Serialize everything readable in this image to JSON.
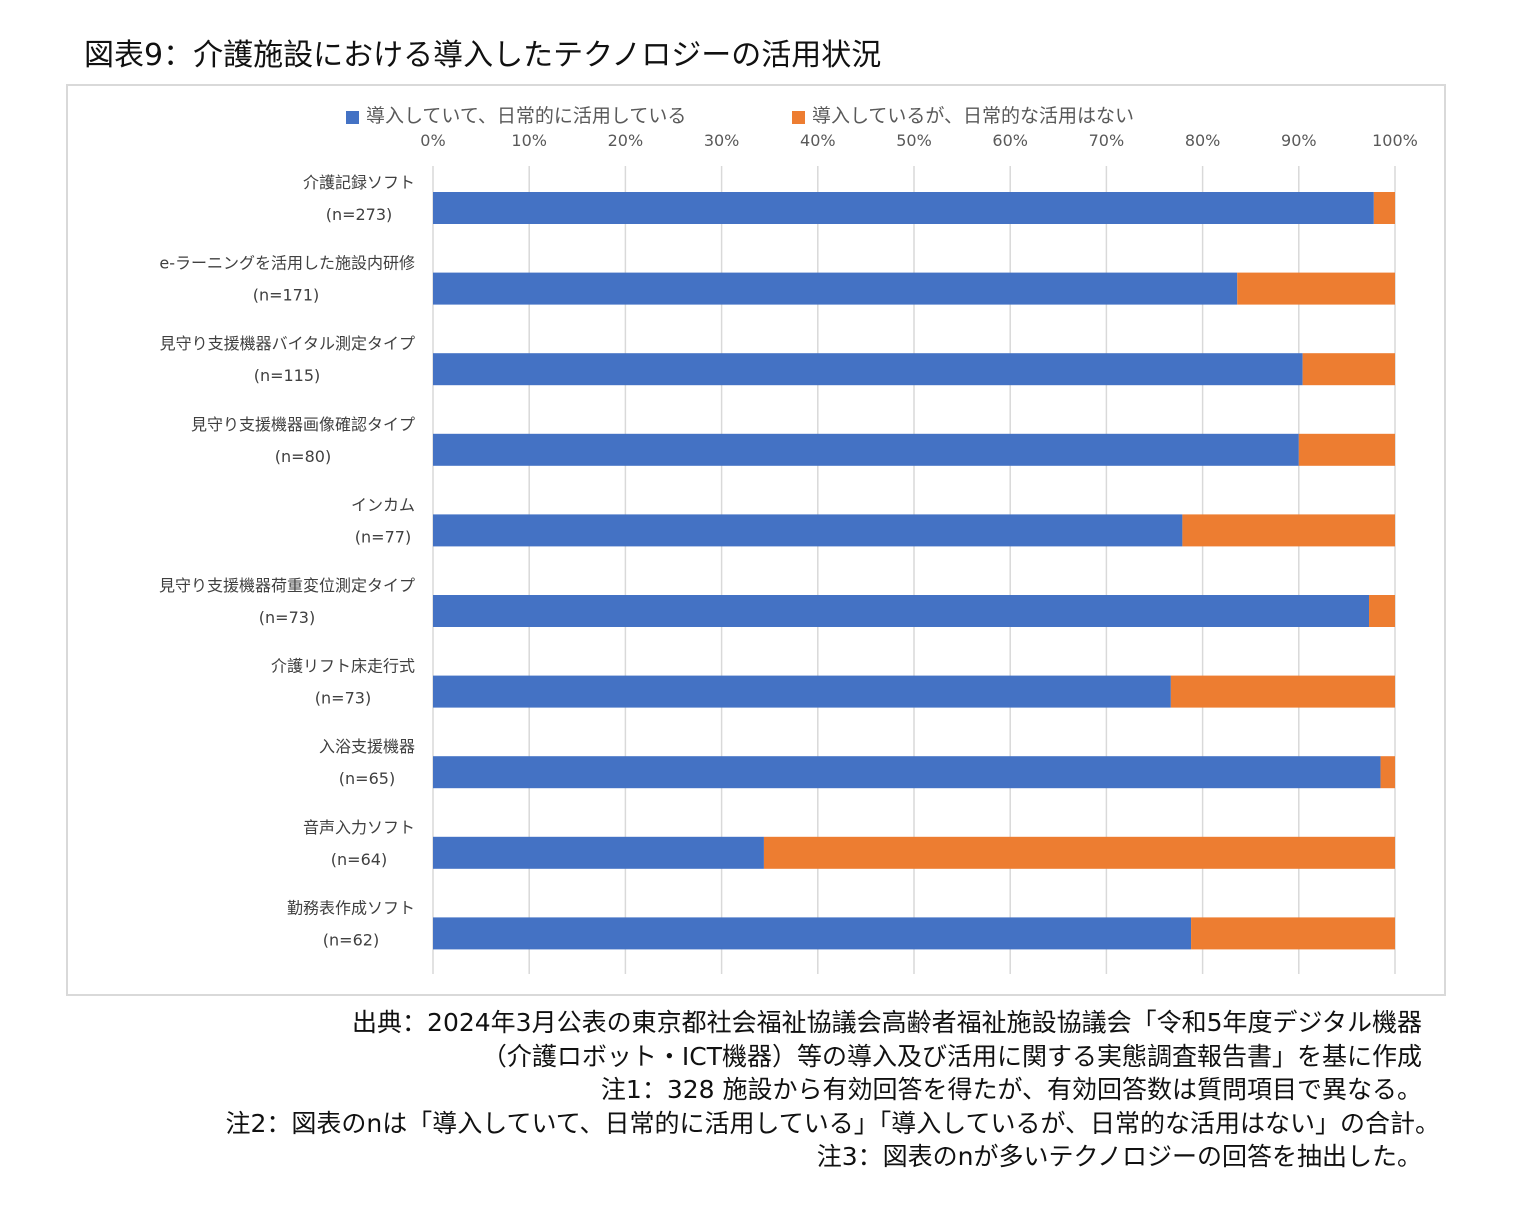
{
  "title": "図表9：介護施設における導入したテクノロジーの活用状況",
  "chart_data": {
    "type": "bar",
    "orientation": "horizontal",
    "stacked": "percent",
    "title": "",
    "legend": [
      "導入していて、日常的に活用している",
      "導入しているが、日常的な活用はない"
    ],
    "legend_position": "top",
    "colors": [
      "#4472c4",
      "#ed7d31"
    ],
    "axis_ticks": [
      "0%",
      "10%",
      "20%",
      "30%",
      "40%",
      "50%",
      "60%",
      "70%",
      "80%",
      "90%",
      "100%"
    ],
    "xlim": [
      0,
      100
    ],
    "grid": true,
    "categories": [
      {
        "name": "介護記録ソフト",
        "n": "(n=273)"
      },
      {
        "name": "e-ラーニングを活用した施設内研修",
        "n": "(n=171)"
      },
      {
        "name": "見守り支援機器バイタル測定タイプ",
        "n": "(n=115)"
      },
      {
        "name": "見守り支援機器画像確認タイプ",
        "n": "(n=80)"
      },
      {
        "name": "インカム",
        "n": "(n=77)"
      },
      {
        "name": "見守り支援機器荷重変位測定タイプ",
        "n": "(n=73)"
      },
      {
        "name": "介護リフト床走行式",
        "n": "(n=73)"
      },
      {
        "name": "入浴支援機器",
        "n": "(n=65)"
      },
      {
        "name": "音声入力ソフト",
        "n": "(n=64)"
      },
      {
        "name": "勤務表作成ソフト",
        "n": "(n=62)"
      }
    ],
    "series": [
      {
        "name": "導入していて、日常的に活用している",
        "values": [
          97.8,
          83.6,
          90.4,
          90.0,
          77.9,
          97.3,
          76.7,
          98.5,
          34.4,
          78.8
        ]
      },
      {
        "name": "導入しているが、日常的な活用はない",
        "values": [
          2.2,
          16.4,
          9.6,
          10.0,
          22.1,
          2.7,
          23.3,
          1.5,
          65.6,
          21.2
        ]
      }
    ]
  },
  "notes": [
    "出典：2024年3月公表の東京都社会福祉協議会高齢者福祉施設協議会「令和5年度デジタル機器",
    "（介護ロボット・ICT機器）等の導入及び活用に関する実態調査報告書」を基に作成",
    "注1：328 施設から有効回答を得たが、有効回答数は質問項目で異なる。",
    "注2：図表のnは「導入していて、日常的に活用している」「導入しているが、日常的な活用はない」の合計。",
    "注3：図表のnが多いテクノロジーの回答を抽出した。"
  ]
}
